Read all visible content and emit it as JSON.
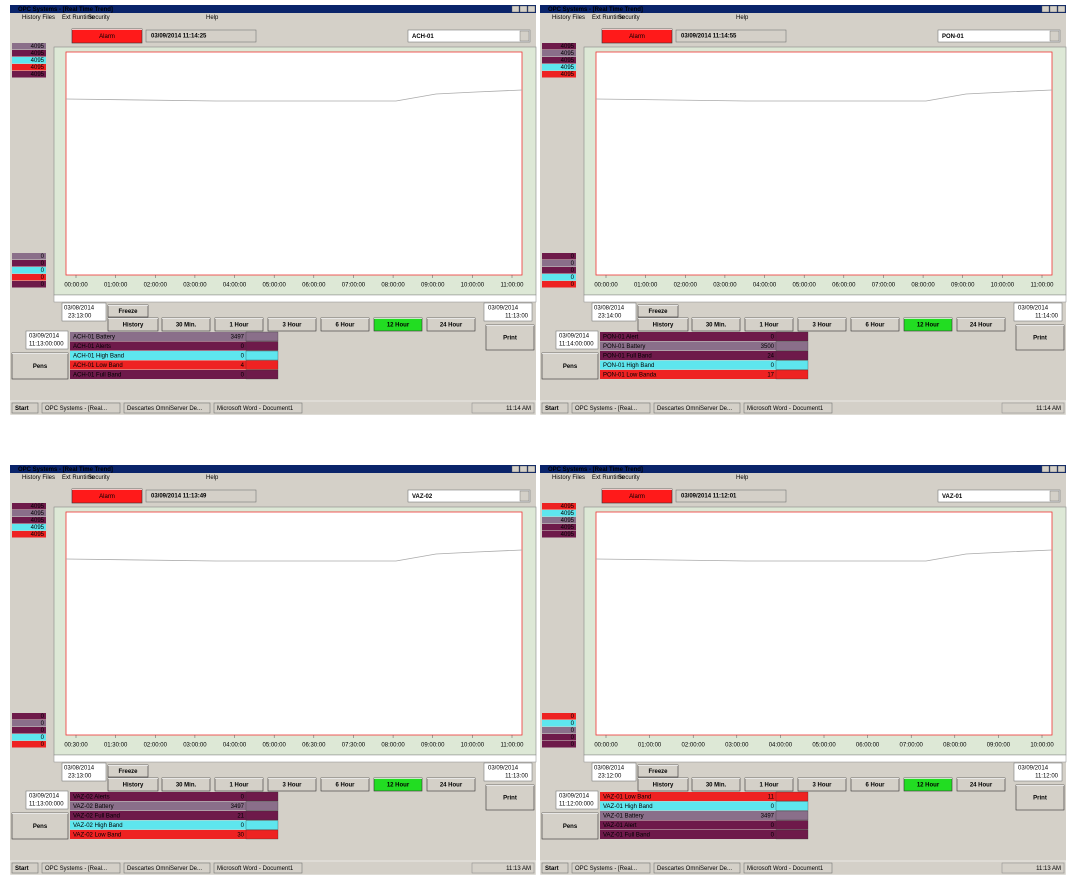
{
  "common": {
    "window_title": "OPC Systems - [Real Time Trend]",
    "menu": [
      "History Files",
      "Ext Runtime",
      "Security",
      "Help"
    ],
    "alarm": "Alarm",
    "freeze": "Freeze",
    "history": "History",
    "ranges": [
      "30 Min.",
      "1 Hour",
      "3 Hour",
      "6 Hour",
      "12 Hour",
      "24 Hour"
    ],
    "print": "Print",
    "pens": "Pens",
    "scale_max": "4095",
    "scale_min": "0",
    "taskbar": [
      "Start",
      "OPC Systems - [Real...",
      "Descartes OmniServer De...",
      "Microsoft Word - Document1"
    ]
  },
  "panels": [
    {
      "datetime": "03/09/2014 11:14:25",
      "pen_select": "ACH-01",
      "x_labels": [
        "00:00:00",
        "01:00:00",
        "02:00:00",
        "03:00:00",
        "04:00:00",
        "05:00:00",
        "06:00:00",
        "07:00:00",
        "08:00:00",
        "09:00:00",
        "10:00:00",
        "11:00:00"
      ],
      "start_date": "03/08/2014",
      "start_time": "23:13:00",
      "end_date": "03/09/2014",
      "end_time": "11:13:00",
      "cursor_date": "03/09/2014",
      "cursor_time": "11:13:00:000",
      "clock": "11:14 AM",
      "pens": [
        {
          "name": "ACH-01 Battery",
          "value": 3497,
          "color": "#8a6f8a"
        },
        {
          "name": "ACH-01 Alerts",
          "value": 0,
          "color": "#6e1a4a"
        },
        {
          "name": "ACH-01 High Band",
          "value": 0,
          "color": "#5ee6ee"
        },
        {
          "name": "ACH-01 Low Band",
          "value": 4,
          "color": "#ee2222"
        },
        {
          "name": "ACH-01 Full Band",
          "value": 0,
          "color": "#6e1a4a"
        }
      ]
    },
    {
      "datetime": "03/09/2014 11:14:55",
      "pen_select": "PON-01",
      "x_labels": [
        "00:00:00",
        "01:00:00",
        "02:00:00",
        "03:00:00",
        "04:00:00",
        "05:00:00",
        "06:00:00",
        "07:00:00",
        "08:00:00",
        "09:00:00",
        "10:00:00",
        "11:00:00"
      ],
      "start_date": "03/08/2014",
      "start_time": "23:14:00",
      "end_date": "03/09/2014",
      "end_time": "11:14:00",
      "cursor_date": "03/09/2014",
      "cursor_time": "11:14:00:000",
      "clock": "11:14 AM",
      "pens": [
        {
          "name": "PON-01 Alert",
          "value": 0,
          "color": "#6e1a4a"
        },
        {
          "name": "PON-01 Battery",
          "value": 3500,
          "color": "#8a6f8a"
        },
        {
          "name": "PON-01 Full Band",
          "value": 24,
          "color": "#6e1a4a"
        },
        {
          "name": "PON-01 High Band",
          "value": 0,
          "color": "#5ee6ee"
        },
        {
          "name": "PON-01 Low Banda",
          "value": 17,
          "color": "#ee2222"
        }
      ]
    },
    {
      "datetime": "03/09/2014 11:13:49",
      "pen_select": "VAZ-02",
      "x_labels": [
        "00:30:00",
        "01:30:00",
        "02:00:00",
        "03:00:00",
        "04:00:00",
        "05:00:00",
        "06:30:00",
        "07:30:00",
        "08:00:00",
        "09:00:00",
        "10:00:00",
        "11:00:00"
      ],
      "start_date": "03/08/2014",
      "start_time": "23:13:00",
      "end_date": "03/09/2014",
      "end_time": "11:13:00",
      "cursor_date": "03/09/2014",
      "cursor_time": "11:13:00:000",
      "clock": "11:13 AM",
      "pens": [
        {
          "name": "VAZ-02 Alerts",
          "value": 0,
          "color": "#6e1a4a"
        },
        {
          "name": "VAZ-02 Battery",
          "value": 3497,
          "color": "#8a6f8a"
        },
        {
          "name": "VAZ-02 Full Band",
          "value": 21,
          "color": "#6e1a4a"
        },
        {
          "name": "VAZ-02 High Band",
          "value": 0,
          "color": "#5ee6ee"
        },
        {
          "name": "VAZ-02 Low Band",
          "value": 30,
          "color": "#ee2222"
        }
      ]
    },
    {
      "datetime": "03/09/2014 11:12:01",
      "pen_select": "VAZ-01",
      "x_labels": [
        "00:00:00",
        "01:00:00",
        "02:00:00",
        "03:00:00",
        "04:00:00",
        "05:00:00",
        "06:00:00",
        "07:00:00",
        "08:00:00",
        "09:00:00",
        "10:00:00"
      ],
      "start_date": "03/08/2014",
      "start_time": "23:12:00",
      "end_date": "03/09/2014",
      "end_time": "11:12:00",
      "cursor_date": "03/09/2014",
      "cursor_time": "11:12:00:000",
      "clock": "11:13 AM",
      "pens": [
        {
          "name": "VAZ-01 Low Band",
          "value": 11,
          "color": "#ee2222"
        },
        {
          "name": "VAZ-01 High Band",
          "value": 0,
          "color": "#5ee6ee"
        },
        {
          "name": "VAZ-01 Battery",
          "value": 3497,
          "color": "#8a6f8a"
        },
        {
          "name": "VAZ-01 Alert",
          "value": 0,
          "color": "#6e1a4a"
        },
        {
          "name": "VAZ-01 Full Band",
          "value": 0,
          "color": "#6e1a4a"
        }
      ]
    }
  ]
}
